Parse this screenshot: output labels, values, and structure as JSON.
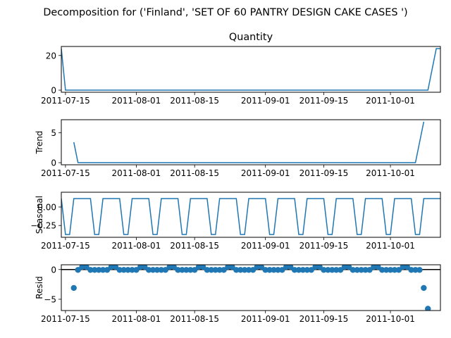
{
  "figure": {
    "suptitle": "Decomposition for ('Finland', 'SET OF 60 PANTRY DESIGN CAKE CASES ')"
  },
  "colors": {
    "series": "#1f77b4",
    "zero_line": "#000000",
    "axes": "#000000"
  },
  "chart_data": [
    {
      "type": "line",
      "name_panel": "observed",
      "title": "Quantity",
      "ylabel": "",
      "x_start": "2011-07-14",
      "x_end": "2011-10-13",
      "x_ticks": [
        "2011-07-15",
        "2011-08-01",
        "2011-08-15",
        "2011-09-01",
        "2011-09-15",
        "2011-10-01"
      ],
      "ylim": [
        -1.2,
        25.2
      ],
      "y_ticks": [
        0,
        20
      ],
      "series": [
        {
          "points": [
            [
              "2011-07-14",
              24
            ],
            [
              "2011-07-15",
              0
            ],
            [
              "2011-10-10",
              0
            ],
            [
              "2011-10-12",
              24
            ],
            [
              "2011-10-13",
              24
            ]
          ]
        }
      ]
    },
    {
      "type": "line",
      "name_panel": "trend",
      "title": "",
      "ylabel": "Trend",
      "x_start": "2011-07-14",
      "x_end": "2011-10-13",
      "x_ticks": [
        "2011-07-15",
        "2011-08-01",
        "2011-08-15",
        "2011-09-01",
        "2011-09-15",
        "2011-10-01"
      ],
      "ylim": [
        -0.35,
        7.2
      ],
      "y_ticks": [
        0,
        5
      ],
      "series": [
        {
          "points": [
            [
              "2011-07-17",
              3.43
            ],
            [
              "2011-07-18",
              0
            ],
            [
              "2011-10-07",
              0
            ],
            [
              "2011-10-09",
              6.86
            ]
          ]
        }
      ]
    },
    {
      "type": "line",
      "name_panel": "seasonal",
      "title": "",
      "ylabel": "Seasonal",
      "x_start": "2011-07-14",
      "x_end": "2011-10-13",
      "x_ticks": [
        "2011-07-15",
        "2011-08-01",
        "2011-08-15",
        "2011-09-01",
        "2011-09-15",
        "2011-10-01"
      ],
      "ylim": [
        -0.41,
        0.2
      ],
      "y_ticks": [
        0.0,
        -0.25
      ],
      "y_tick_labels": [
        "0.00",
        "−0.25"
      ],
      "weekly_pattern": [
        0.1143,
        -0.3714,
        -0.3714,
        0.1143,
        0.1143,
        0.1143,
        0.1143
      ],
      "pattern_anchor": "2011-07-14"
    },
    {
      "type": "scatter",
      "name_panel": "resid",
      "title": "",
      "ylabel": "Resid",
      "x_start": "2011-07-14",
      "x_end": "2011-10-13",
      "x_ticks": [
        "2011-07-15",
        "2011-08-01",
        "2011-08-15",
        "2011-09-01",
        "2011-09-15",
        "2011-10-01"
      ],
      "ylim": [
        -6.9,
        0.8
      ],
      "y_ticks": [
        0,
        -5
      ],
      "y_tick_labels": [
        "0",
        "−5"
      ],
      "zero_line": true,
      "outliers": [
        [
          "2011-07-17",
          -3.1
        ],
        [
          "2011-10-09",
          -3.1
        ],
        [
          "2011-10-10",
          -6.6
        ]
      ]
    }
  ]
}
